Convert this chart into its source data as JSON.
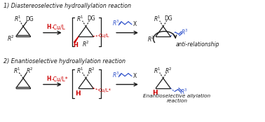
{
  "title1": "1) Diastereoselective hydroallylation reaction",
  "title2": "2) Enantioselective hydroallylation reaction",
  "bg_color": "#ffffff",
  "black": "#1a1a1a",
  "red": "#cc0000",
  "blue": "#3355cc",
  "italic_label": "anti-relationship",
  "italic_label2": "Enantioselective allylation\nreaction"
}
